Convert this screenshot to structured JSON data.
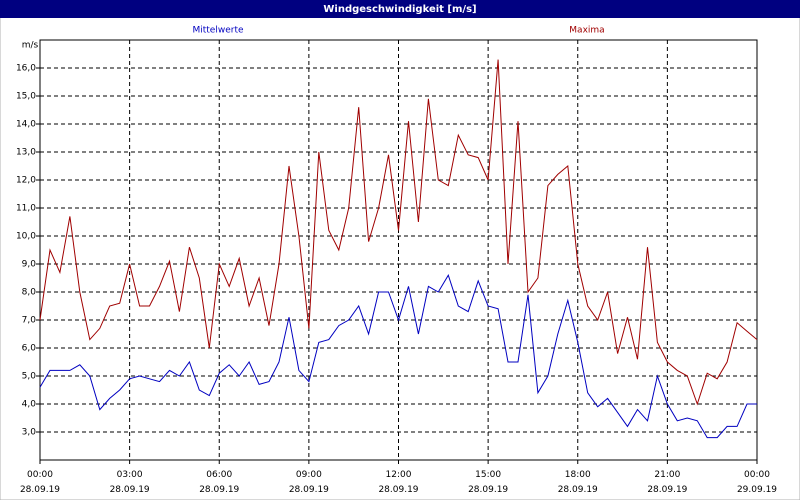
{
  "chart_data": {
    "type": "line",
    "title": "Windgeschwindigkeit [m/s]",
    "y_label": "m/s",
    "x": [
      0,
      20,
      40,
      60,
      80,
      100,
      120,
      140,
      160,
      180,
      200,
      220,
      240,
      260,
      280,
      300,
      320,
      340,
      360,
      380,
      400,
      420,
      440,
      460,
      480,
      500,
      520,
      540,
      560,
      580,
      600,
      620,
      640,
      660,
      680,
      700,
      720,
      740,
      760,
      780,
      800,
      820,
      840,
      860,
      880,
      900,
      920,
      940,
      960,
      980,
      1000,
      1020,
      1040,
      1060,
      1080,
      1100,
      1120,
      1140,
      1160,
      1180,
      1200,
      1220,
      1240,
      1260,
      1280,
      1300,
      1320,
      1340,
      1360,
      1380,
      1400,
      1420,
      1440
    ],
    "series": [
      {
        "name": "Mittelwerte",
        "color": "#0000c0",
        "values": [
          4.6,
          5.2,
          5.2,
          5.2,
          5.4,
          5.0,
          3.8,
          4.2,
          4.5,
          4.9,
          5.0,
          4.9,
          4.8,
          5.2,
          5.0,
          5.5,
          4.5,
          4.3,
          5.1,
          5.4,
          5.0,
          5.5,
          4.7,
          4.8,
          5.5,
          7.1,
          5.2,
          4.8,
          6.2,
          6.3,
          6.8,
          7.0,
          7.5,
          6.5,
          8.0,
          8.0,
          7.0,
          8.2,
          6.5,
          8.2,
          8.0,
          8.6,
          7.5,
          7.3,
          8.4,
          7.5,
          7.4,
          5.5,
          5.5,
          7.9,
          4.4,
          5.0,
          6.5,
          7.7,
          6.2,
          4.4,
          3.9,
          4.2,
          3.7,
          3.2,
          3.8,
          3.4,
          5.0,
          4.0,
          3.4,
          3.5,
          3.4,
          2.8,
          2.8,
          3.2,
          3.2,
          4.0,
          4.0
        ]
      },
      {
        "name": "Maxima",
        "color": "#a00000",
        "values": [
          7.0,
          9.5,
          8.7,
          10.7,
          8.0,
          6.3,
          6.7,
          7.5,
          7.6,
          9.0,
          7.5,
          7.5,
          8.2,
          9.1,
          7.3,
          9.6,
          8.5,
          6.0,
          9.0,
          8.2,
          9.2,
          7.5,
          8.5,
          6.8,
          9.0,
          12.5,
          10.0,
          6.7,
          13.0,
          10.2,
          9.5,
          11.0,
          14.6,
          9.8,
          11.0,
          12.9,
          10.2,
          14.1,
          10.5,
          14.9,
          12.0,
          11.8,
          13.6,
          12.9,
          12.8,
          12.0,
          16.3,
          9.0,
          14.1,
          8.0,
          8.5,
          11.8,
          12.2,
          12.5,
          9.0,
          7.5,
          7.0,
          8.0,
          5.8,
          7.1,
          5.6,
          9.6,
          6.2,
          5.5,
          5.2,
          5.0,
          4.0,
          5.1,
          4.9,
          5.5,
          6.9,
          6.6,
          6.3
        ]
      }
    ],
    "xlim": [
      0,
      1440
    ],
    "xticks": [
      {
        "value": 0,
        "label": "00:00\n28.09.19"
      },
      {
        "value": 180,
        "label": "03:00\n28.09.19"
      },
      {
        "value": 360,
        "label": "06:00\n28.09.19"
      },
      {
        "value": 540,
        "label": "09:00\n28.09.19"
      },
      {
        "value": 720,
        "label": "12:00\n28.09.19"
      },
      {
        "value": 900,
        "label": "15:00\n28.09.19"
      },
      {
        "value": 1080,
        "label": "18:00\n28.09.19"
      },
      {
        "value": 1260,
        "label": "21:00\n28.09.19"
      },
      {
        "value": 1440,
        "label": "00:00\n29.09.19"
      }
    ],
    "ylim": [
      2,
      17
    ],
    "yticks": [
      {
        "value": 3,
        "label": "3,0"
      },
      {
        "value": 4,
        "label": "4,0"
      },
      {
        "value": 5,
        "label": "5,0"
      },
      {
        "value": 6,
        "label": "6,0"
      },
      {
        "value": 7,
        "label": "7,0"
      },
      {
        "value": 8,
        "label": "8,0"
      },
      {
        "value": 9,
        "label": "9,0"
      },
      {
        "value": 10,
        "label": "10,0"
      },
      {
        "value": 11,
        "label": "11,0"
      },
      {
        "value": 12,
        "label": "12,0"
      },
      {
        "value": 13,
        "label": "13,0"
      },
      {
        "value": 14,
        "label": "14,0"
      },
      {
        "value": 15,
        "label": "15,0"
      },
      {
        "value": 16,
        "label": "16,0"
      }
    ],
    "grid": true
  }
}
